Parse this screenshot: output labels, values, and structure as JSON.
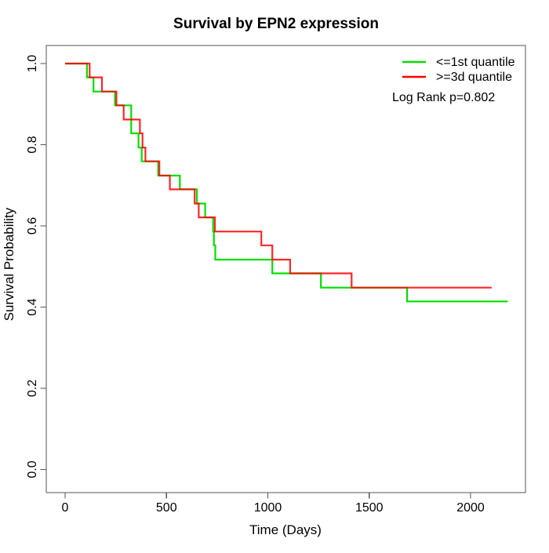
{
  "chart_data": {
    "type": "line",
    "subtype": "kaplan-meier-step",
    "title": "Survival by EPN2 expression",
    "xlabel": "Time (Days)",
    "ylabel": "Survival Probability",
    "xlim": [
      0,
      2271
    ],
    "ylim": [
      0.0,
      1.0
    ],
    "x_ticks": [
      0,
      500,
      1000,
      1500,
      2000
    ],
    "y_ticks": [
      0.0,
      0.2,
      0.4,
      0.6,
      0.8,
      1.0
    ],
    "grid": false,
    "legend_position": "top-right-inside",
    "annotation": "Log Rank p=0.802",
    "series": [
      {
        "name": "<=1st quantile",
        "color": "#00E000",
        "end_time": 2183,
        "steps": [
          [
            0,
            1.0
          ],
          [
            108,
            0.966
          ],
          [
            140,
            0.931
          ],
          [
            246,
            0.897
          ],
          [
            326,
            0.828
          ],
          [
            362,
            0.793
          ],
          [
            378,
            0.759
          ],
          [
            459,
            0.724
          ],
          [
            566,
            0.69
          ],
          [
            650,
            0.655
          ],
          [
            691,
            0.621
          ],
          [
            730,
            0.586
          ],
          [
            734,
            0.552
          ],
          [
            741,
            0.517
          ],
          [
            1022,
            0.483
          ],
          [
            1262,
            0.448
          ],
          [
            1687,
            0.414
          ]
        ]
      },
      {
        "name": ">=3d quantile",
        "color": "#FF0000",
        "end_time": 2104,
        "steps": [
          [
            0,
            1.0
          ],
          [
            121,
            0.966
          ],
          [
            182,
            0.931
          ],
          [
            253,
            0.897
          ],
          [
            289,
            0.862
          ],
          [
            369,
            0.828
          ],
          [
            382,
            0.793
          ],
          [
            396,
            0.759
          ],
          [
            465,
            0.724
          ],
          [
            517,
            0.69
          ],
          [
            639,
            0.655
          ],
          [
            659,
            0.621
          ],
          [
            739,
            0.586
          ],
          [
            968,
            0.552
          ],
          [
            1022,
            0.517
          ],
          [
            1110,
            0.483
          ],
          [
            1413,
            0.448
          ]
        ]
      }
    ]
  }
}
